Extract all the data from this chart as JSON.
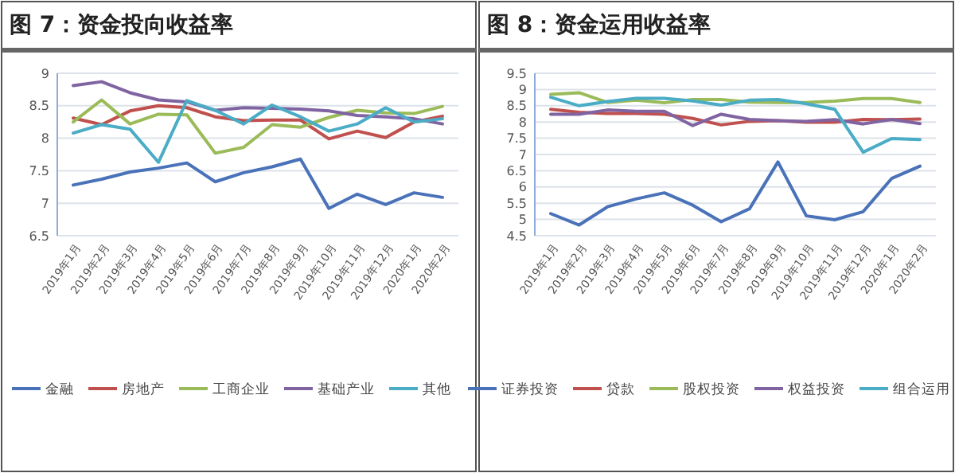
{
  "chart_data": [
    {
      "type": "line",
      "title": "图 7：资金投向收益率",
      "categories": [
        "2019年1月",
        "2019年2月",
        "2019年3月",
        "2019年4月",
        "2019年5月",
        "2019年6月",
        "2019年7月",
        "2019年8月",
        "2019年9月",
        "2019年10月",
        "2019年11月",
        "2019年12月",
        "2020年1月",
        "2020年2月"
      ],
      "ylim": [
        6.5,
        9
      ],
      "yticks": [
        6.5,
        7,
        7.5,
        8,
        8.5,
        9
      ],
      "grid": "y",
      "legend": "bottom",
      "marker": "none",
      "series": [
        {
          "name": "金融",
          "color": "#4a72b8",
          "values": [
            7.28,
            7.37,
            7.48,
            7.54,
            7.62,
            7.33,
            7.47,
            7.56,
            7.68,
            6.92,
            7.14,
            6.98,
            7.16,
            7.09
          ]
        },
        {
          "name": "房地产",
          "color": "#c0504d",
          "values": [
            8.31,
            8.21,
            8.42,
            8.5,
            8.47,
            8.33,
            8.27,
            8.28,
            8.28,
            7.99,
            8.11,
            8.01,
            8.25,
            8.34
          ]
        },
        {
          "name": "工商企业",
          "color": "#9bbb59",
          "values": [
            8.25,
            8.59,
            8.22,
            8.37,
            8.36,
            7.77,
            7.86,
            8.21,
            8.17,
            8.32,
            8.43,
            8.39,
            8.38,
            8.49
          ]
        },
        {
          "name": "基础产业",
          "color": "#8064a2",
          "values": [
            8.81,
            8.87,
            8.7,
            8.59,
            8.56,
            8.43,
            8.47,
            8.46,
            8.45,
            8.42,
            8.35,
            8.33,
            8.3,
            8.22
          ]
        },
        {
          "name": "其他",
          "color": "#4bacc6",
          "values": [
            8.08,
            8.21,
            8.14,
            7.63,
            8.58,
            8.43,
            8.22,
            8.51,
            8.33,
            8.11,
            8.22,
            8.47,
            8.25,
            8.3
          ]
        }
      ]
    },
    {
      "type": "line",
      "title": "图 8：资金运用收益率",
      "categories": [
        "2019年1月",
        "2019年2月",
        "2019年3月",
        "2019年4月",
        "2019年5月",
        "2019年6月",
        "2019年7月",
        "2019年8月",
        "2019年9月",
        "2019年10月",
        "2019年11月",
        "2019年12月",
        "2020年1月",
        "2020年2月"
      ],
      "ylim": [
        4.5,
        9.5
      ],
      "yticks": [
        4.5,
        5,
        5.5,
        6,
        6.5,
        7,
        7.5,
        8,
        8.5,
        9,
        9.5
      ],
      "grid": "y",
      "legend": "bottom",
      "marker": "none",
      "series": [
        {
          "name": "证券投资",
          "color": "#4a72b8",
          "values": [
            5.18,
            4.83,
            5.39,
            5.63,
            5.82,
            5.44,
            4.93,
            5.33,
            6.77,
            5.11,
            4.99,
            5.24,
            6.26,
            6.64
          ]
        },
        {
          "name": "贷款",
          "color": "#c0504d",
          "values": [
            8.39,
            8.3,
            8.26,
            8.26,
            8.24,
            8.11,
            7.91,
            8.02,
            8.04,
            7.99,
            7.99,
            8.08,
            8.07,
            8.09
          ]
        },
        {
          "name": "股权投资",
          "color": "#9bbb59",
          "values": [
            8.85,
            8.9,
            8.6,
            8.67,
            8.59,
            8.69,
            8.69,
            8.61,
            8.6,
            8.6,
            8.64,
            8.72,
            8.72,
            8.6
          ]
        },
        {
          "name": "权益投资",
          "color": "#8064a2",
          "values": [
            8.24,
            8.24,
            8.37,
            8.33,
            8.33,
            7.89,
            8.24,
            8.08,
            8.04,
            8.02,
            8.07,
            7.94,
            8.08,
            7.95
          ]
        },
        {
          "name": "组合运用",
          "color": "#4bacc6",
          "values": [
            8.76,
            8.5,
            8.63,
            8.73,
            8.73,
            8.65,
            8.52,
            8.67,
            8.69,
            8.56,
            8.39,
            7.07,
            7.49,
            7.46
          ]
        }
      ]
    }
  ]
}
